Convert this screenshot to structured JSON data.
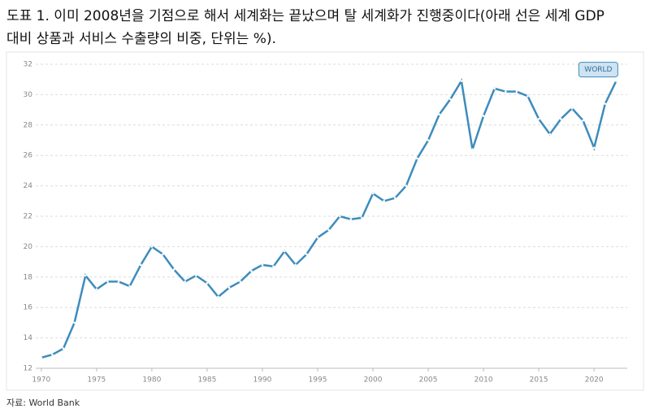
{
  "chart_data": {
    "type": "line",
    "title": [
      "도표 1. 이미 2008년을 기점으로 해서 세계화는 끝났으며 탈 세계화가 진행중이다(아래 선은 세계 GDP",
      "대비 상품과 서비스 수출량의 비중, 단위는 %)."
    ],
    "source": "자료: World Bank",
    "x": [
      1970,
      1971,
      1972,
      1973,
      1974,
      1975,
      1976,
      1977,
      1978,
      1979,
      1980,
      1981,
      1982,
      1983,
      1984,
      1985,
      1986,
      1987,
      1988,
      1989,
      1990,
      1991,
      1992,
      1993,
      1994,
      1995,
      1996,
      1997,
      1998,
      1999,
      2000,
      2001,
      2002,
      2003,
      2004,
      2005,
      2006,
      2007,
      2008,
      2009,
      2010,
      2011,
      2012,
      2013,
      2014,
      2015,
      2016,
      2017,
      2018,
      2019,
      2020,
      2021,
      2022
    ],
    "series": [
      {
        "name": "WORLD",
        "color": "#3d8cbc",
        "values": [
          12.7,
          12.9,
          13.3,
          15.0,
          18.1,
          17.2,
          17.7,
          17.7,
          17.4,
          18.8,
          20.0,
          19.5,
          18.5,
          17.7,
          18.1,
          17.6,
          16.7,
          17.3,
          17.7,
          18.4,
          18.8,
          18.7,
          19.7,
          18.8,
          19.5,
          20.6,
          21.1,
          22.0,
          21.8,
          21.9,
          23.5,
          23.0,
          23.2,
          24.0,
          25.8,
          27.0,
          28.7,
          29.7,
          30.9,
          26.4,
          28.6,
          30.4,
          30.2,
          30.2,
          29.9,
          28.4,
          27.4,
          28.4,
          29.1,
          28.3,
          26.5,
          29.4,
          30.9
        ]
      }
    ],
    "xlim": [
      1969.5,
      2023
    ],
    "xticks": [
      1970,
      1975,
      1980,
      1985,
      1990,
      1995,
      2000,
      2005,
      2010,
      2015,
      2020
    ],
    "ylim": [
      12,
      32
    ],
    "yticks": [
      12,
      14,
      16,
      18,
      20,
      22,
      24,
      26,
      28,
      30,
      32
    ],
    "grid": true
  }
}
